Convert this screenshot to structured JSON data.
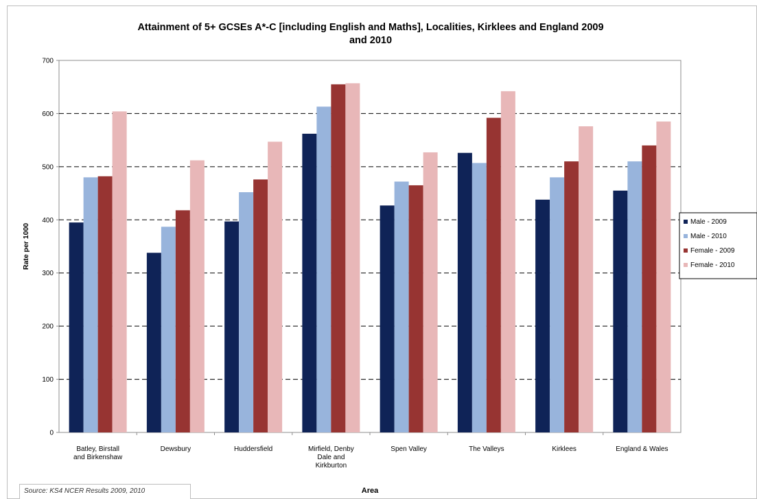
{
  "chart_data": {
    "type": "bar",
    "title_line1": "Attainment of 5+ GCSEs A*-C [including English and Maths], Localities, Kirklees and England 2009",
    "title_line2": "and 2010",
    "xlabel": "Area",
    "ylabel": "Rate per 1000",
    "ylim": [
      0,
      700
    ],
    "yticks": [
      0,
      100,
      200,
      300,
      400,
      500,
      600,
      700
    ],
    "grid": true,
    "legend_position": "right",
    "categories": [
      [
        "Batley, Birstall",
        "and Birkenshaw"
      ],
      [
        "Dewsbury"
      ],
      [
        "Huddersfield"
      ],
      [
        "Mirfield, Denby",
        "Dale and",
        "Kirkburton"
      ],
      [
        "Spen Valley"
      ],
      [
        "The Valleys"
      ],
      [
        "Kirklees"
      ],
      [
        "England & Wales"
      ]
    ],
    "series": [
      {
        "name": "Male - 2009",
        "color": "#0f2357",
        "values": [
          395,
          338,
          397,
          562,
          427,
          526,
          438,
          455
        ]
      },
      {
        "name": "Male - 2010",
        "color": "#98b4dc",
        "values": [
          480,
          387,
          452,
          613,
          472,
          507,
          480,
          510
        ]
      },
      {
        "name": "Female - 2009",
        "color": "#973432",
        "values": [
          482,
          418,
          476,
          655,
          465,
          592,
          510,
          540
        ]
      },
      {
        "name": "Female - 2010",
        "color": "#e8b7b8",
        "values": [
          604,
          512,
          547,
          657,
          527,
          642,
          576,
          585
        ]
      }
    ]
  },
  "source_note": "Source: KS4 NCER Results 2009, 2010"
}
